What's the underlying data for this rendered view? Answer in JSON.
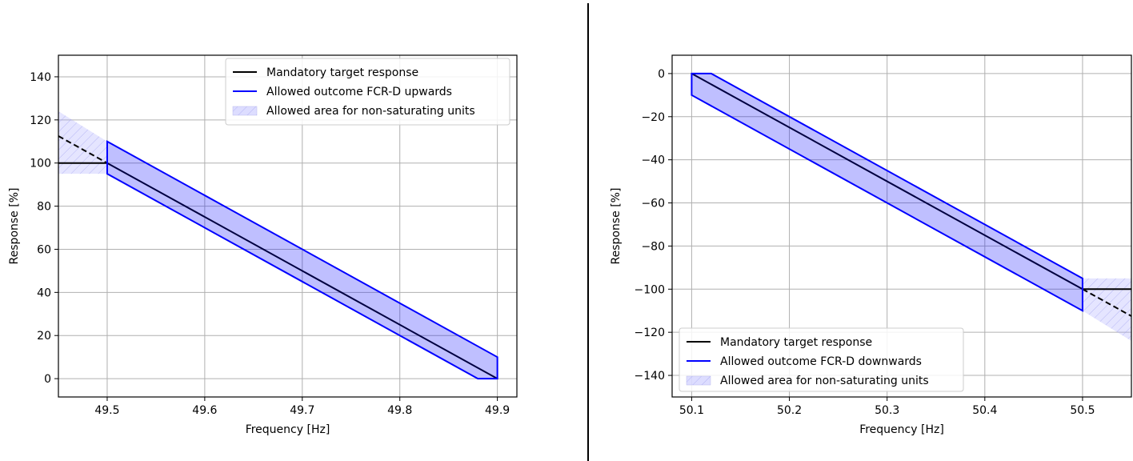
{
  "chart_data": [
    {
      "type": "line",
      "title": "",
      "xlabel": "Frequency [Hz]",
      "ylabel": "Response [%]",
      "xlim": [
        49.45,
        49.92
      ],
      "ylim": [
        -8.5,
        150
      ],
      "xticks": [
        49.5,
        49.6,
        49.7,
        49.8,
        49.9
      ],
      "yticks": [
        0,
        20,
        40,
        60,
        80,
        100,
        120,
        140
      ],
      "grid": true,
      "legend_position": "upper-right",
      "legend": [
        {
          "label": "Mandatory target response",
          "kind": "line",
          "color": "#000000"
        },
        {
          "label": "Allowed outcome FCR-D upwards",
          "kind": "line",
          "color": "#0000ff"
        },
        {
          "label": "Allowed area for non-saturating units",
          "kind": "patch",
          "color": "#aaaaff"
        }
      ],
      "series": [
        {
          "name": "Mandatory target response",
          "color": "#000000",
          "style": "solid",
          "x": [
            49.45,
            49.5,
            49.9
          ],
          "y": [
            100,
            100,
            0
          ]
        },
        {
          "style": "dashed",
          "color": "#000000",
          "x": [
            49.45,
            49.5
          ],
          "y": [
            112.5,
            100
          ]
        },
        {
          "name": "Allowed outcome FCR-D upwards",
          "color": "#0000ff",
          "style": "solid",
          "closed": true,
          "x": [
            49.5,
            49.9,
            49.9,
            49.88,
            49.5
          ],
          "y": [
            110,
            10,
            0,
            0,
            95
          ]
        }
      ],
      "areas": [
        {
          "name": "Allowed area for non-saturating units",
          "color": "#aaaaff",
          "x": [
            49.45,
            49.5,
            49.5,
            49.45
          ],
          "y": [
            124,
            110,
            95,
            95
          ]
        }
      ]
    },
    {
      "type": "line",
      "title": "",
      "xlabel": "Frequency [Hz]",
      "ylabel": "Response [%]",
      "xlim": [
        50.08,
        50.55
      ],
      "ylim": [
        -150,
        8.5
      ],
      "xticks": [
        50.1,
        50.2,
        50.3,
        50.4,
        50.5
      ],
      "yticks": [
        0,
        -20,
        -40,
        -60,
        -80,
        -100,
        -120,
        -140
      ],
      "grid": true,
      "legend_position": "lower-left",
      "legend": [
        {
          "label": "Mandatory target response",
          "kind": "line",
          "color": "#000000"
        },
        {
          "label": "Allowed outcome FCR-D downwards",
          "kind": "line",
          "color": "#0000ff"
        },
        {
          "label": "Allowed area for non-saturating units",
          "kind": "patch",
          "color": "#aaaaff"
        }
      ],
      "series": [
        {
          "name": "Mandatory target response",
          "color": "#000000",
          "style": "solid",
          "x": [
            50.1,
            50.5,
            50.55
          ],
          "y": [
            0,
            -100,
            -100
          ]
        },
        {
          "style": "dashed",
          "color": "#000000",
          "x": [
            50.5,
            50.55
          ],
          "y": [
            -100,
            -112.5
          ]
        },
        {
          "name": "Allowed outcome FCR-D downwards",
          "color": "#0000ff",
          "style": "solid",
          "closed": true,
          "x": [
            50.1,
            50.12,
            50.5,
            50.5,
            50.1
          ],
          "y": [
            0,
            0,
            -95,
            -110,
            -10
          ]
        }
      ],
      "areas": [
        {
          "name": "Allowed area for non-saturating units",
          "color": "#aaaaff",
          "x": [
            50.5,
            50.55,
            50.55,
            50.5
          ],
          "y": [
            -95,
            -95,
            -124,
            -110
          ]
        }
      ]
    }
  ]
}
